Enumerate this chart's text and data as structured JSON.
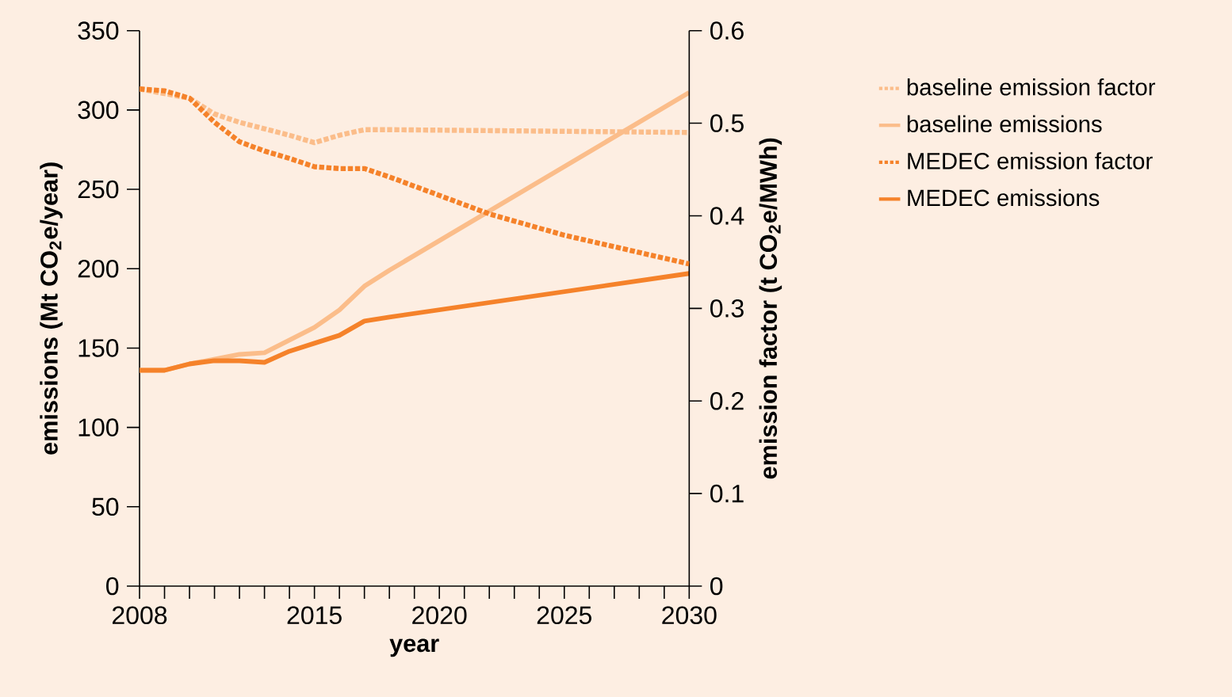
{
  "chart_data": {
    "type": "line",
    "xlabel": "year",
    "ylabel": "emissions (Mt CO$_{2}$e/year)",
    "y2label": "emission factor (t CO$_{2}$e/MWh)",
    "xlim": [
      2008,
      2030
    ],
    "ylim": [
      0,
      350
    ],
    "y2lim": [
      0,
      0.6
    ],
    "xticks": [
      2008,
      {
        "value": 2009,
        "label": null
      },
      {
        "value": 2010,
        "label": null
      },
      {
        "value": 2011,
        "label": null
      },
      {
        "value": 2012,
        "label": null
      },
      {
        "value": 2013,
        "label": null
      },
      {
        "value": 2014,
        "label": null
      },
      2015,
      {
        "value": 2016,
        "label": null
      },
      {
        "value": 2017,
        "label": null
      },
      {
        "value": 2018,
        "label": null
      },
      {
        "value": 2019,
        "label": null
      },
      2020,
      {
        "value": 2021,
        "label": null
      },
      {
        "value": 2022,
        "label": null
      },
      {
        "value": 2023,
        "label": null
      },
      {
        "value": 2024,
        "label": null
      },
      2025,
      {
        "value": 2026,
        "label": null
      },
      {
        "value": 2027,
        "label": null
      },
      {
        "value": 2028,
        "label": null
      },
      {
        "value": 2029,
        "label": null
      },
      2030
    ],
    "yticks": [
      0,
      50,
      100,
      150,
      200,
      250,
      300,
      350
    ],
    "y2ticks": [
      0,
      0.1,
      0.2,
      0.3,
      0.4,
      0.5,
      0.6
    ],
    "legend": "right",
    "grid": false,
    "marker": "none",
    "series": [
      {
        "name": "baseline emission factor",
        "color": "#fbbd8a",
        "axis": "y2",
        "line_style": "dotted",
        "x": [
          2008,
          2010,
          2011,
          2012,
          2013,
          2014,
          2015,
          2016,
          2017,
          2018,
          2030
        ],
        "values": [
          0.537,
          0.527,
          0.51,
          0.501,
          0.494,
          0.487,
          0.479,
          0.487,
          0.493,
          0.493,
          0.49
        ]
      },
      {
        "name": "baseline emissions",
        "color": "#fbbd8a",
        "axis": "y",
        "line_style": "solid",
        "x": [
          2008,
          2009,
          2010,
          2012,
          2013,
          2014,
          2015,
          2016,
          2017,
          2018,
          2030
        ],
        "values": [
          136,
          136,
          140,
          146,
          147,
          155,
          163,
          174,
          189,
          199,
          311
        ]
      },
      {
        "name": "MEDEC emission factor",
        "color": "#f5822a",
        "axis": "y2",
        "line_style": "dotted",
        "x": [
          2008,
          2009,
          2010,
          2011,
          2012,
          2013,
          2014,
          2015,
          2016,
          2017,
          2018,
          2020,
          2022,
          2025,
          2030
        ],
        "values": [
          0.537,
          0.535,
          0.527,
          0.501,
          0.48,
          0.47,
          0.462,
          0.453,
          0.451,
          0.451,
          0.442,
          0.422,
          0.402,
          0.379,
          0.348
        ]
      },
      {
        "name": "MEDEC emissions",
        "color": "#f5822a",
        "axis": "y",
        "line_style": "solid",
        "x": [
          2008,
          2009,
          2010,
          2011,
          2012,
          2013,
          2014,
          2015,
          2016,
          2017,
          2018,
          2030
        ],
        "values": [
          136,
          136,
          140,
          142,
          142,
          141,
          148,
          153,
          158,
          167,
          169.5,
          197
        ]
      }
    ]
  }
}
